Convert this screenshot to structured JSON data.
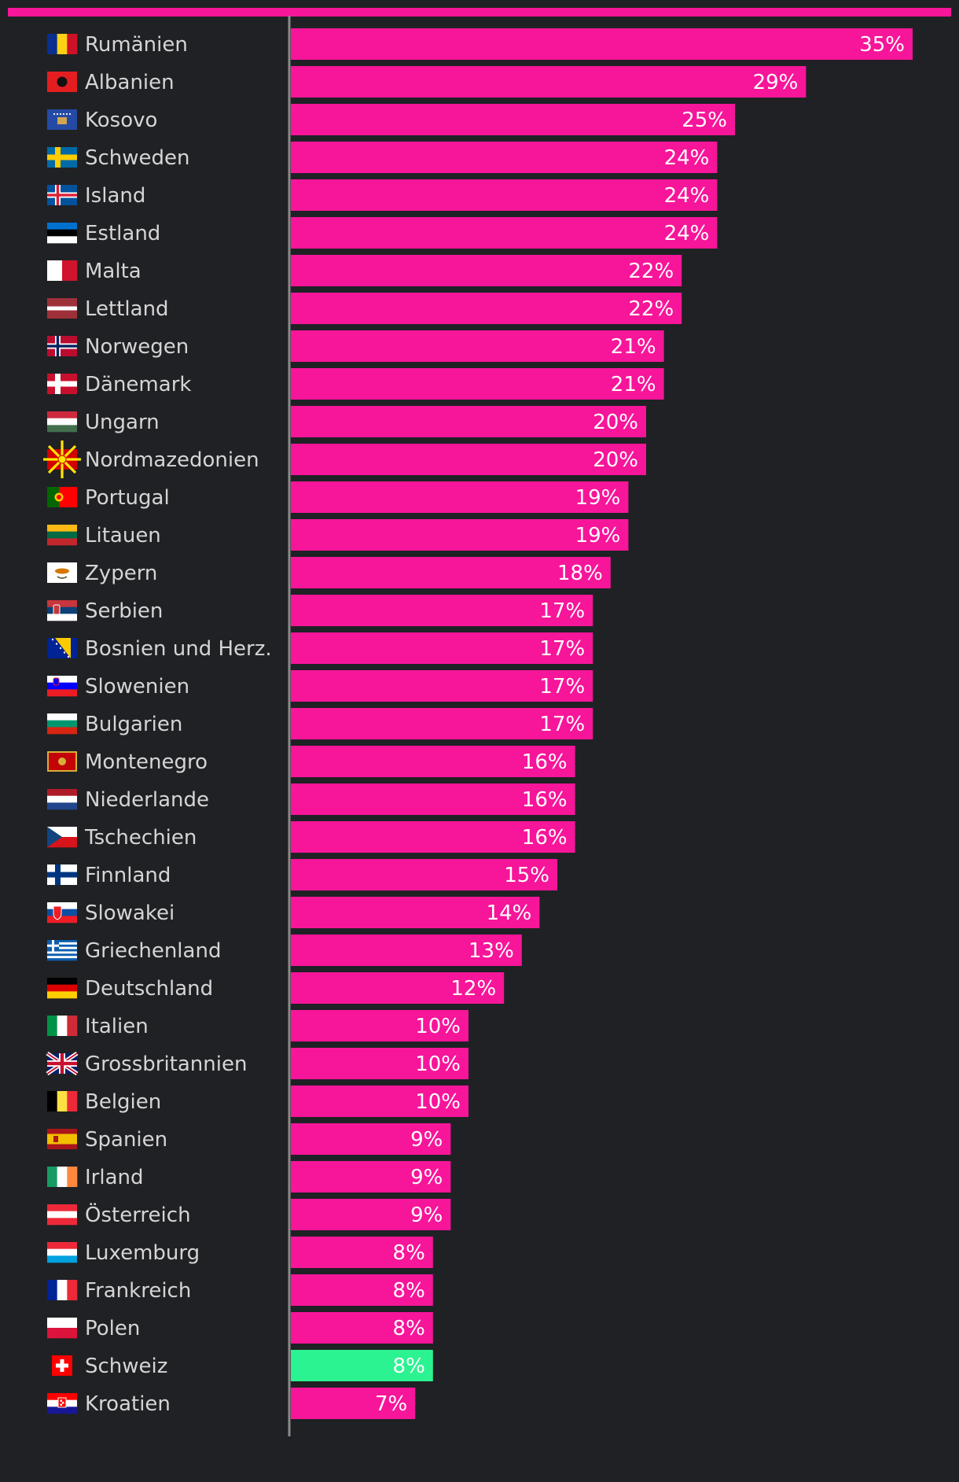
{
  "chart_data": {
    "type": "bar",
    "orientation": "horizontal",
    "accent_color": "#f7159a",
    "highlight_color": "#2cf391",
    "background": "#202124",
    "categories": [
      {
        "label": "Rumänien",
        "value": 35,
        "value_label": "35%",
        "flag": "ro-flag-icon"
      },
      {
        "label": "Albanien",
        "value": 29,
        "value_label": "29%",
        "flag": "al-flag-icon"
      },
      {
        "label": "Kosovo",
        "value": 25,
        "value_label": "25%",
        "flag": "xk-flag-icon"
      },
      {
        "label": "Schweden",
        "value": 24,
        "value_label": "24%",
        "flag": "se-flag-icon"
      },
      {
        "label": "Island",
        "value": 24,
        "value_label": "24%",
        "flag": "is-flag-icon"
      },
      {
        "label": "Estland",
        "value": 24,
        "value_label": "24%",
        "flag": "ee-flag-icon"
      },
      {
        "label": "Malta",
        "value": 22,
        "value_label": "22%",
        "flag": "mt-flag-icon"
      },
      {
        "label": "Lettland",
        "value": 22,
        "value_label": "22%",
        "flag": "lv-flag-icon"
      },
      {
        "label": "Norwegen",
        "value": 21,
        "value_label": "21%",
        "flag": "no-flag-icon"
      },
      {
        "label": "Dänemark",
        "value": 21,
        "value_label": "21%",
        "flag": "dk-flag-icon"
      },
      {
        "label": "Ungarn",
        "value": 20,
        "value_label": "20%",
        "flag": "hu-flag-icon"
      },
      {
        "label": "Nordmazedonien",
        "value": 20,
        "value_label": "20%",
        "flag": "mk-flag-icon"
      },
      {
        "label": "Portugal",
        "value": 19,
        "value_label": "19%",
        "flag": "pt-flag-icon"
      },
      {
        "label": "Litauen",
        "value": 19,
        "value_label": "19%",
        "flag": "lt-flag-icon"
      },
      {
        "label": "Zypern",
        "value": 18,
        "value_label": "18%",
        "flag": "cy-flag-icon"
      },
      {
        "label": "Serbien",
        "value": 17,
        "value_label": "17%",
        "flag": "rs-flag-icon"
      },
      {
        "label": "Bosnien und Herz.",
        "value": 17,
        "value_label": "17%",
        "flag": "ba-flag-icon"
      },
      {
        "label": "Slowenien",
        "value": 17,
        "value_label": "17%",
        "flag": "si-flag-icon"
      },
      {
        "label": "Bulgarien",
        "value": 17,
        "value_label": "17%",
        "flag": "bg-flag-icon"
      },
      {
        "label": "Montenegro",
        "value": 16,
        "value_label": "16%",
        "flag": "me-flag-icon"
      },
      {
        "label": "Niederlande",
        "value": 16,
        "value_label": "16%",
        "flag": "nl-flag-icon"
      },
      {
        "label": "Tschechien",
        "value": 16,
        "value_label": "16%",
        "flag": "cz-flag-icon"
      },
      {
        "label": "Finnland",
        "value": 15,
        "value_label": "15%",
        "flag": "fi-flag-icon"
      },
      {
        "label": "Slowakei",
        "value": 14,
        "value_label": "14%",
        "flag": "sk-flag-icon"
      },
      {
        "label": "Griechenland",
        "value": 13,
        "value_label": "13%",
        "flag": "gr-flag-icon"
      },
      {
        "label": "Deutschland",
        "value": 12,
        "value_label": "12%",
        "flag": "de-flag-icon"
      },
      {
        "label": "Italien",
        "value": 10,
        "value_label": "10%",
        "flag": "it-flag-icon"
      },
      {
        "label": "Grossbritannien",
        "value": 10,
        "value_label": "10%",
        "flag": "gb-flag-icon"
      },
      {
        "label": "Belgien",
        "value": 10,
        "value_label": "10%",
        "flag": "be-flag-icon"
      },
      {
        "label": "Spanien",
        "value": 9,
        "value_label": "9%",
        "flag": "es-flag-icon"
      },
      {
        "label": "Irland",
        "value": 9,
        "value_label": "9%",
        "flag": "ie-flag-icon"
      },
      {
        "label": "Österreich",
        "value": 9,
        "value_label": "9%",
        "flag": "at-flag-icon"
      },
      {
        "label": "Luxemburg",
        "value": 8,
        "value_label": "8%",
        "flag": "lu-flag-icon"
      },
      {
        "label": "Frankreich",
        "value": 8,
        "value_label": "8%",
        "flag": "fr-flag-icon"
      },
      {
        "label": "Polen",
        "value": 8,
        "value_label": "8%",
        "flag": "pl-flag-icon"
      },
      {
        "label": "Schweiz",
        "value": 8,
        "value_label": "8%",
        "flag": "ch-flag-icon",
        "highlight": true
      },
      {
        "label": "Kroatien",
        "value": 7,
        "value_label": "7%",
        "flag": "hr-flag-icon"
      }
    ],
    "title": "",
    "xlabel": "",
    "ylabel": "",
    "xlim": [
      0,
      35
    ],
    "grid": false,
    "legend": "none"
  }
}
